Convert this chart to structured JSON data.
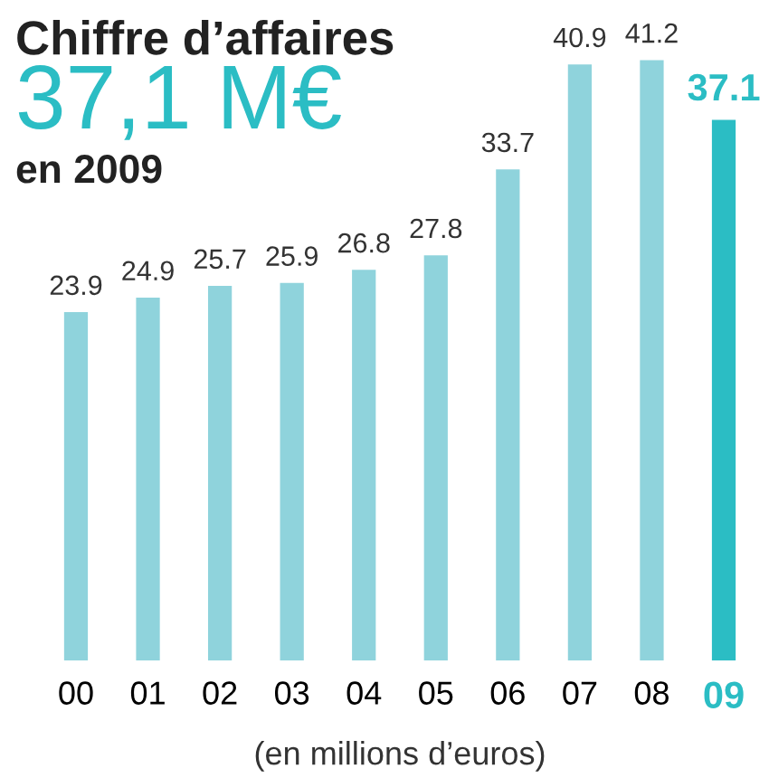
{
  "chart_data": {
    "type": "bar",
    "title": "Chiffre d’affaires",
    "subtitle": "37,1 M€",
    "annotations": [
      "en 2009"
    ],
    "xlabel": "(en millions d’euros)",
    "categories": [
      "00",
      "01",
      "02",
      "03",
      "04",
      "05",
      "06",
      "07",
      "08",
      "09"
    ],
    "values": [
      23.9,
      24.9,
      25.7,
      25.9,
      26.8,
      27.8,
      33.7,
      40.9,
      41.2,
      37.1
    ],
    "colors": [
      "#8fd3dc",
      "#8fd3dc",
      "#8fd3dc",
      "#8fd3dc",
      "#8fd3dc",
      "#8fd3dc",
      "#8fd3dc",
      "#8fd3dc",
      "#8fd3dc",
      "#2bbdc4"
    ],
    "data_labels": true,
    "grid": false,
    "legend": false
  }
}
